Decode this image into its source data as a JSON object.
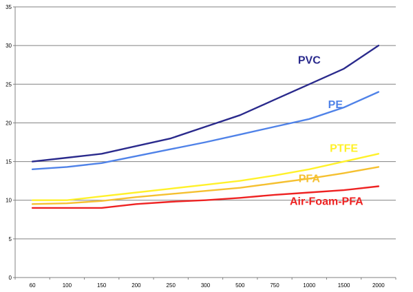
{
  "chart_data": {
    "type": "line",
    "categories": [
      "60",
      "100",
      "150",
      "200",
      "250",
      "300",
      "500",
      "750",
      "1000",
      "1500",
      "2000"
    ],
    "ylim": [
      0,
      35
    ],
    "yticks": [
      "0",
      "5",
      "10",
      "15",
      "20",
      "25",
      "30",
      "35"
    ],
    "grid": true,
    "series": [
      {
        "name": "PVC",
        "color": "#2a2a8c",
        "values": [
          15,
          15.5,
          16,
          17,
          18,
          19.5,
          21,
          23,
          25,
          27,
          30
        ]
      },
      {
        "name": "PE",
        "color": "#4f82e8",
        "values": [
          14,
          14.3,
          14.8,
          15.7,
          16.6,
          17.5,
          18.5,
          19.5,
          20.5,
          22,
          24
        ]
      },
      {
        "name": "PTFE",
        "color": "#fff12a",
        "values": [
          10,
          10,
          10.5,
          11,
          11.5,
          12,
          12.5,
          13.2,
          14,
          15,
          16
        ]
      },
      {
        "name": "PFA",
        "color": "#f5c030",
        "values": [
          9.5,
          9.6,
          9.9,
          10.4,
          10.8,
          11.2,
          11.6,
          12.2,
          12.8,
          13.5,
          14.3
        ]
      },
      {
        "name": "Air-Foam-PFA",
        "color": "#ee2222",
        "values": [
          9,
          9,
          9,
          9.5,
          9.8,
          10,
          10.3,
          10.7,
          11,
          11.3,
          11.8
        ]
      }
    ]
  }
}
